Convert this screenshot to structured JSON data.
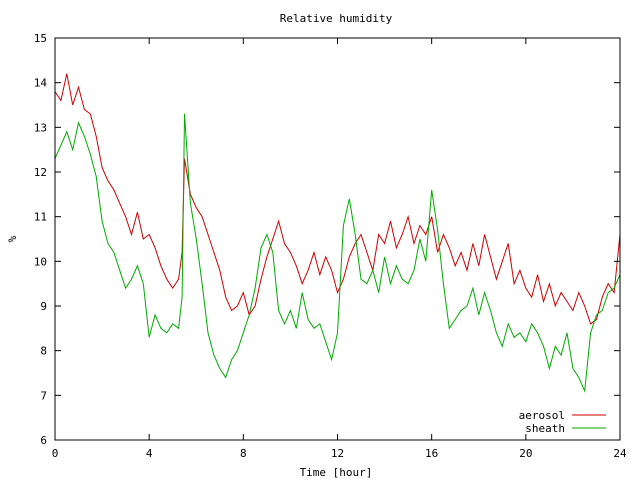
{
  "chart_data": {
    "type": "line",
    "title": "Relative humidity",
    "xlabel": "Time [hour]",
    "ylabel": "%",
    "xlim": [
      0,
      24
    ],
    "ylim": [
      6,
      15
    ],
    "xticks": [
      0,
      4,
      8,
      12,
      16,
      20,
      24
    ],
    "yticks": [
      6,
      7,
      8,
      9,
      10,
      11,
      12,
      13,
      14,
      15
    ],
    "grid": false,
    "legend_position": "bottom-right",
    "series": [
      {
        "name": "aerosol",
        "color": "#cc0000",
        "x": [
          0,
          0.25,
          0.5,
          0.75,
          1,
          1.25,
          1.5,
          1.75,
          2,
          2.25,
          2.5,
          2.75,
          3,
          3.25,
          3.5,
          3.75,
          4,
          4.25,
          4.5,
          4.75,
          5,
          5.25,
          5.4,
          5.5,
          5.75,
          6,
          6.25,
          6.5,
          6.75,
          7,
          7.25,
          7.5,
          7.75,
          8,
          8.25,
          8.5,
          8.75,
          9,
          9.25,
          9.5,
          9.75,
          10,
          10.25,
          10.5,
          10.75,
          11,
          11.25,
          11.5,
          11.75,
          12,
          12.25,
          12.5,
          12.75,
          13,
          13.25,
          13.5,
          13.75,
          14,
          14.25,
          14.5,
          14.75,
          15,
          15.25,
          15.5,
          15.75,
          16,
          16.25,
          16.5,
          16.75,
          17,
          17.25,
          17.5,
          17.75,
          18,
          18.25,
          18.5,
          18.75,
          19,
          19.25,
          19.5,
          19.75,
          20,
          20.25,
          20.5,
          20.75,
          21,
          21.25,
          21.5,
          21.75,
          22,
          22.25,
          22.5,
          22.75,
          23,
          23.25,
          23.5,
          23.75,
          24
        ],
        "y": [
          13.8,
          13.6,
          14.2,
          13.5,
          13.9,
          13.4,
          13.3,
          12.8,
          12.1,
          11.8,
          11.6,
          11.3,
          11.0,
          10.6,
          11.1,
          10.5,
          10.6,
          10.3,
          9.9,
          9.6,
          9.4,
          9.6,
          10.2,
          12.3,
          11.5,
          11.2,
          11.0,
          10.6,
          10.2,
          9.8,
          9.2,
          8.9,
          9.0,
          9.3,
          8.8,
          9.0,
          9.6,
          10.1,
          10.5,
          10.9,
          10.4,
          10.2,
          9.9,
          9.5,
          9.8,
          10.2,
          9.7,
          10.1,
          9.8,
          9.3,
          9.6,
          10.1,
          10.4,
          10.6,
          10.2,
          9.8,
          10.6,
          10.4,
          10.9,
          10.3,
          10.6,
          11.0,
          10.4,
          10.8,
          10.6,
          11.0,
          10.2,
          10.6,
          10.3,
          9.9,
          10.2,
          9.8,
          10.4,
          9.9,
          10.6,
          10.1,
          9.6,
          10.0,
          10.4,
          9.5,
          9.8,
          9.4,
          9.2,
          9.7,
          9.1,
          9.5,
          9.0,
          9.3,
          9.1,
          8.9,
          9.3,
          9.0,
          8.6,
          8.7,
          9.2,
          9.5,
          9.3,
          10.6
        ]
      },
      {
        "name": "sheath",
        "color": "#00aa00",
        "x": [
          0,
          0.25,
          0.5,
          0.75,
          1,
          1.25,
          1.5,
          1.75,
          2,
          2.25,
          2.5,
          2.75,
          3,
          3.25,
          3.5,
          3.75,
          4,
          4.25,
          4.5,
          4.75,
          5,
          5.25,
          5.4,
          5.5,
          5.75,
          6,
          6.25,
          6.5,
          6.75,
          7,
          7.25,
          7.5,
          7.75,
          8,
          8.25,
          8.5,
          8.75,
          9,
          9.25,
          9.5,
          9.75,
          10,
          10.25,
          10.5,
          10.75,
          11,
          11.25,
          11.5,
          11.75,
          12,
          12.25,
          12.5,
          12.75,
          13,
          13.25,
          13.5,
          13.75,
          14,
          14.25,
          14.5,
          14.75,
          15,
          15.25,
          15.5,
          15.75,
          16,
          16.25,
          16.5,
          16.75,
          17,
          17.25,
          17.5,
          17.75,
          18,
          18.25,
          18.5,
          18.75,
          19,
          19.25,
          19.5,
          19.75,
          20,
          20.25,
          20.5,
          20.75,
          21,
          21.25,
          21.5,
          21.75,
          22,
          22.25,
          22.5,
          22.75,
          23,
          23.25,
          23.5,
          23.75,
          24
        ],
        "y": [
          12.3,
          12.6,
          12.9,
          12.5,
          13.1,
          12.8,
          12.4,
          11.9,
          10.9,
          10.4,
          10.2,
          9.8,
          9.4,
          9.6,
          9.9,
          9.5,
          8.3,
          8.8,
          8.5,
          8.4,
          8.6,
          8.5,
          9.2,
          13.3,
          11.3,
          10.5,
          9.5,
          8.4,
          7.9,
          7.6,
          7.4,
          7.8,
          8.0,
          8.4,
          8.8,
          9.4,
          10.3,
          10.6,
          10.2,
          8.9,
          8.6,
          8.9,
          8.5,
          9.3,
          8.7,
          8.5,
          8.6,
          8.2,
          7.8,
          8.4,
          10.8,
          11.4,
          10.6,
          9.6,
          9.5,
          9.8,
          9.3,
          10.1,
          9.5,
          9.9,
          9.6,
          9.5,
          9.8,
          10.5,
          10.0,
          11.6,
          10.7,
          9.5,
          8.5,
          8.7,
          8.9,
          9.0,
          9.4,
          8.8,
          9.3,
          8.9,
          8.4,
          8.1,
          8.6,
          8.3,
          8.4,
          8.2,
          8.6,
          8.4,
          8.1,
          7.6,
          8.1,
          7.9,
          8.4,
          7.6,
          7.4,
          7.1,
          8.4,
          8.8,
          8.9,
          9.3,
          9.4,
          9.7
        ]
      }
    ]
  }
}
